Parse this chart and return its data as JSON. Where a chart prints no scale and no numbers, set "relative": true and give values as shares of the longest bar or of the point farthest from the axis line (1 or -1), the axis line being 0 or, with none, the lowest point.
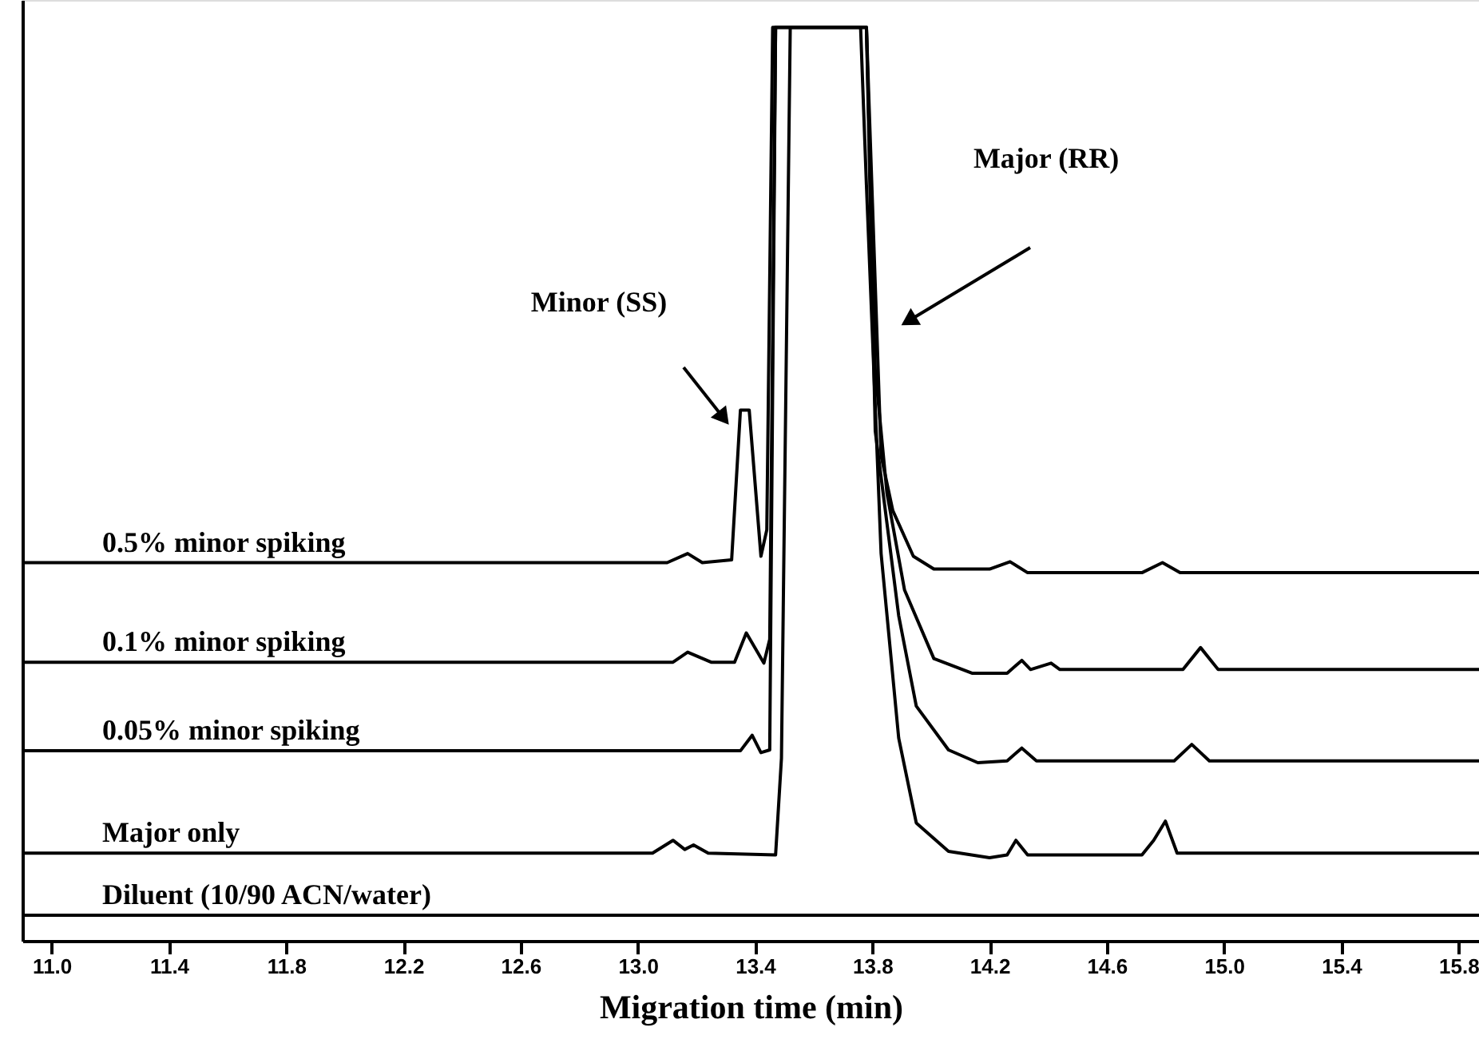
{
  "chart_data": {
    "type": "line",
    "relative": true,
    "xlabel": "Migration time (min)",
    "legend": false,
    "grid": false,
    "marker": "none",
    "line_style": "solid",
    "xlim": [
      10.9,
      15.87
    ],
    "xticks": [
      {
        "value": 11.0,
        "label": "11.0"
      },
      {
        "value": 11.4,
        "label": "11.4"
      },
      {
        "value": 11.8,
        "label": "11.8"
      },
      {
        "value": 12.2,
        "label": "12.2"
      },
      {
        "value": 12.6,
        "label": "12.6"
      },
      {
        "value": 13.0,
        "label": "13.0"
      },
      {
        "value": 13.4,
        "label": "13.4"
      },
      {
        "value": 13.8,
        "label": "13.8"
      },
      {
        "value": 14.2,
        "label": "14.2"
      },
      {
        "value": 14.6,
        "label": "14.6"
      },
      {
        "value": 15.0,
        "label": "15.0"
      },
      {
        "value": 15.4,
        "label": "15.4"
      },
      {
        "value": 15.8,
        "label": "15.8"
      }
    ],
    "series": [
      {
        "name": "0.5% minor spiking",
        "color": "#000000",
        "x": [
          10.9,
          13.1,
          13.17,
          13.22,
          13.32,
          13.35,
          13.38,
          13.42,
          13.44,
          13.46,
          13.78,
          13.83,
          13.87,
          13.94,
          14.01,
          14.2,
          14.27,
          14.33,
          14.72,
          14.79,
          14.85,
          15.87
        ],
        "values": [
          0.414,
          0.414,
          0.424,
          0.414,
          0.417,
          0.581,
          0.581,
          0.421,
          0.45,
          1,
          1,
          0.531,
          0.471,
          0.421,
          0.407,
          0.407,
          0.415,
          0.403,
          0.403,
          0.414,
          0.403,
          0.403
        ]
      },
      {
        "name": "0.1% minor spiking",
        "color": "#000000",
        "x": [
          10.9,
          13.12,
          13.17,
          13.25,
          13.33,
          13.37,
          13.43,
          13.45,
          13.47,
          13.78,
          13.81,
          13.85,
          13.91,
          14.01,
          14.14,
          14.26,
          14.31,
          14.34,
          14.41,
          14.44,
          14.86,
          14.92,
          14.98,
          15.87
        ],
        "values": [
          0.305,
          0.305,
          0.316,
          0.305,
          0.305,
          0.337,
          0.304,
          0.33,
          1,
          1,
          0.625,
          0.49,
          0.384,
          0.309,
          0.293,
          0.293,
          0.307,
          0.297,
          0.304,
          0.297,
          0.297,
          0.321,
          0.297,
          0.297
        ]
      },
      {
        "name": "0.05% minor spiking",
        "color": "#000000",
        "x": [
          10.9,
          13.35,
          13.39,
          13.42,
          13.45,
          13.47,
          13.78,
          13.81,
          13.89,
          13.95,
          14.06,
          14.16,
          14.26,
          14.31,
          14.36,
          14.83,
          14.89,
          14.95,
          15.87
        ],
        "values": [
          0.208,
          0.208,
          0.225,
          0.206,
          0.209,
          1,
          1,
          0.558,
          0.356,
          0.257,
          0.209,
          0.195,
          0.197,
          0.211,
          0.197,
          0.197,
          0.215,
          0.197,
          0.197
        ]
      },
      {
        "name": "Major only",
        "color": "#000000",
        "x": [
          10.9,
          13.05,
          13.12,
          13.16,
          13.19,
          13.24,
          13.47,
          13.49,
          13.52,
          13.76,
          13.78,
          13.83,
          13.89,
          13.95,
          14.06,
          14.2,
          14.26,
          14.29,
          14.33,
          14.72,
          14.76,
          14.8,
          14.84,
          15.87
        ],
        "values": [
          0.096,
          0.096,
          0.11,
          0.1,
          0.105,
          0.096,
          0.094,
          0.2,
          1,
          1,
          0.827,
          0.424,
          0.222,
          0.129,
          0.098,
          0.091,
          0.094,
          0.11,
          0.094,
          0.094,
          0.11,
          0.131,
          0.096,
          0.096
        ]
      },
      {
        "name": "Diluent (10/90 ACN/water)",
        "color": "#000000",
        "x": [
          10.9,
          15.87
        ],
        "values": [
          0.028,
          0.028
        ]
      }
    ],
    "annotations": [
      "Minor (SS)",
      "Major (RR)"
    ]
  }
}
